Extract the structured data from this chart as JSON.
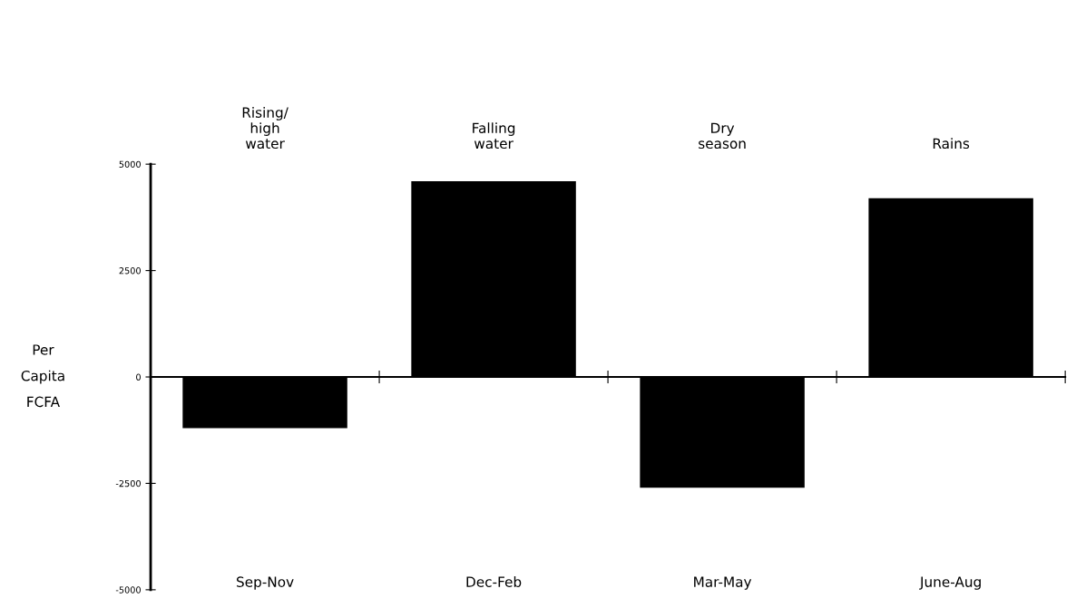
{
  "chart_data": {
    "type": "bar",
    "categories": [
      "Sep-Nov",
      "Dec-Feb",
      "Mar-May",
      "June-Aug"
    ],
    "values": [
      -1200,
      4600,
      -2600,
      4200
    ],
    "color": "#000000",
    "ylabel": "Per\nCapita\nFCFA",
    "ylim": [
      -5000,
      5000
    ],
    "yticks": [
      -5000,
      -2500,
      0,
      2500,
      5000
    ],
    "annotations": [
      "Rising/\nhigh\nwater",
      "Falling\nwater",
      "Dry\nseason",
      "Rains"
    ]
  }
}
